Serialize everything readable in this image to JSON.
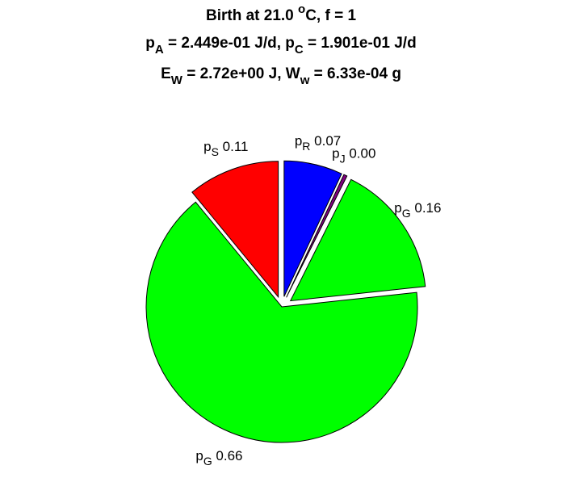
{
  "chart_data": {
    "type": "pie",
    "title": [
      [
        {
          "text": "Birth at 21.0 "
        },
        {
          "text": "o",
          "baseline": "super"
        },
        {
          "text": "C, f = 1"
        }
      ],
      [
        {
          "text": "p"
        },
        {
          "text": "A",
          "baseline": "sub"
        },
        {
          "text": " = 2.449e-01 J/d, p"
        },
        {
          "text": "C",
          "baseline": "sub"
        },
        {
          "text": " = 1.901e-01 J/d"
        }
      ],
      [
        {
          "text": "E"
        },
        {
          "text": "W",
          "baseline": "sub"
        },
        {
          "text": " = 2.72e+00 J, W"
        },
        {
          "text": "w",
          "baseline": "sub"
        },
        {
          "text": " = 6.33e-04 g"
        }
      ]
    ],
    "categories": [
      {
        "symbol": "p",
        "subscript": "R"
      },
      {
        "symbol": "p",
        "subscript": "J"
      },
      {
        "symbol": "p",
        "subscript": "G"
      },
      {
        "symbol": "p",
        "subscript": "G"
      },
      {
        "symbol": "p",
        "subscript": "S"
      }
    ],
    "values": [
      0.07,
      0.004,
      0.16,
      0.66,
      0.11
    ],
    "value_labels": [
      "0.07",
      "0.00",
      "0.16",
      "0.66",
      "0.11"
    ],
    "colors": [
      "#0000ff",
      "#800080",
      "#00ff00",
      "#00ff00",
      "#ff0000"
    ],
    "explode": [
      true,
      true,
      true,
      false,
      true
    ],
    "direction": "clockwise"
  }
}
